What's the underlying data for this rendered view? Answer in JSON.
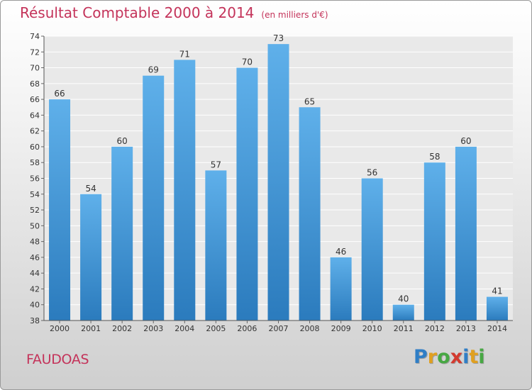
{
  "chart_data": {
    "type": "bar",
    "title": "Résultat Comptable 2000 à 2014",
    "subtitle": "(en milliers d'€)",
    "categories": [
      "2000",
      "2001",
      "2002",
      "2003",
      "2004",
      "2005",
      "2006",
      "2007",
      "2008",
      "2009",
      "2010",
      "2011",
      "2012",
      "2013",
      "2014"
    ],
    "values": [
      66,
      54,
      60,
      69,
      71,
      57,
      70,
      73,
      65,
      46,
      56,
      40,
      58,
      60,
      41
    ],
    "ylim": [
      38,
      74
    ],
    "yticks": [
      38,
      40,
      42,
      44,
      46,
      48,
      50,
      52,
      54,
      56,
      58,
      60,
      62,
      64,
      66,
      68,
      70,
      72,
      74
    ],
    "grid": true,
    "data_labels": true,
    "bar_color_top": "#5fb0ea",
    "bar_color_bottom": "#2b7bbd",
    "text_color": "#c4335a"
  },
  "footer": {
    "place": "FAUDOAS"
  },
  "brand": {
    "letters": [
      {
        "ch": "P",
        "color": "#2f7ec6"
      },
      {
        "ch": "r",
        "color": "#e0a020"
      },
      {
        "ch": "o",
        "color": "#47a843"
      },
      {
        "ch": "x",
        "color": "#d33a2f"
      },
      {
        "ch": "i",
        "color": "#2f7ec6"
      },
      {
        "ch": "t",
        "color": "#e0a020"
      },
      {
        "ch": "i",
        "color": "#47a843"
      }
    ]
  }
}
